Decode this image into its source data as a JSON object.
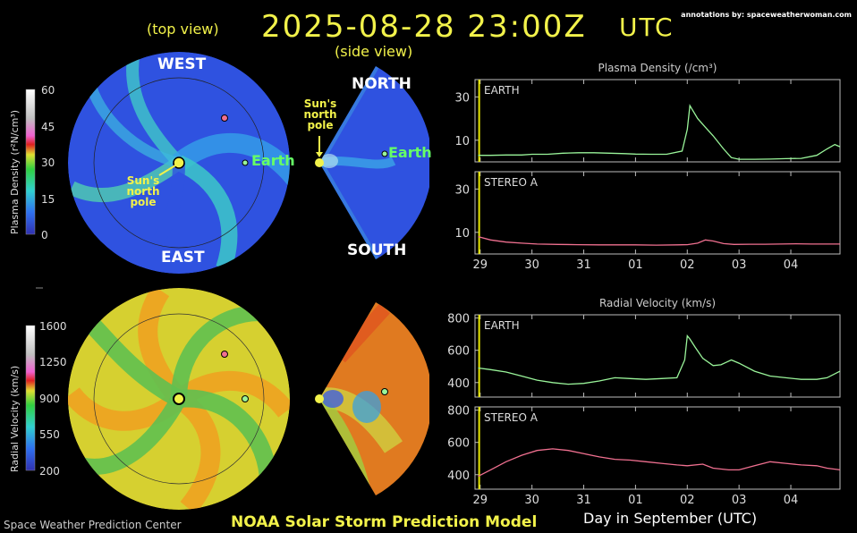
{
  "header": {
    "date": "2025-08-28 23:00Z",
    "utc": "UTC",
    "annotations": "annotations by: spaceweatherwoman.com"
  },
  "views": {
    "top": "(top view)",
    "side": "(side view)"
  },
  "directions": {
    "west": "WEST",
    "east": "EAST",
    "north": "NORTH",
    "south": "SOUTH"
  },
  "labels": {
    "earth": "Earth",
    "pole_line1": "Sun's",
    "pole_line2": "north",
    "pole_line3": "pole"
  },
  "colorbars": {
    "density": {
      "title": "Plasma Density (r²N/cm³)",
      "ticks": [
        "60",
        "45",
        "30",
        "15",
        "0"
      ]
    },
    "velocity": {
      "title": "Radial Velocity (km/s)",
      "ticks": [
        "1600",
        "1250",
        "900",
        "550",
        "200"
      ]
    }
  },
  "footer": {
    "left": "Space Weather Prediction Center",
    "middle": "NOAA Solar Storm Prediction Model",
    "right": "Day in  September (UTC)"
  },
  "colors": {
    "density_line_earth": "#9af59a",
    "density_line_stereo": "#f07090",
    "velocity_line_earth": "#9af59a",
    "velocity_line_stereo": "#f07090",
    "now_marker": "#e8e800"
  },
  "chart_data": [
    {
      "type": "line",
      "title": "Plasma Density (/cm³)",
      "panel": "EARTH",
      "x_tick_labels": [
        "29",
        "30",
        "31",
        "01",
        "02",
        "03",
        "04"
      ],
      "x": [
        28.96,
        29.2,
        29.5,
        29.8,
        30.0,
        30.3,
        30.6,
        30.9,
        31.2,
        31.5,
        31.8,
        32.0,
        32.3,
        32.6,
        32.9,
        33.0,
        33.05,
        33.1,
        33.2,
        33.35,
        33.5,
        33.7,
        33.85,
        34.0,
        34.3,
        34.6,
        34.9,
        35.2,
        35.5,
        35.7,
        35.85,
        35.95
      ],
      "y": [
        3,
        3,
        3.2,
        3.2,
        3.5,
        3.5,
        4,
        4.2,
        4.2,
        4,
        3.8,
        3.6,
        3.5,
        3.5,
        5,
        15,
        26,
        24,
        20,
        16,
        12,
        6,
        2,
        1.2,
        1.2,
        1.3,
        1.5,
        1.6,
        3,
        6,
        8,
        7
      ],
      "yticks": [
        10,
        30
      ],
      "ylim": [
        0,
        38
      ],
      "xlim": [
        28.9,
        35.95
      ]
    },
    {
      "type": "line",
      "title": "",
      "panel": "STEREO A",
      "x_tick_labels": [
        "29",
        "30",
        "31",
        "01",
        "02",
        "03",
        "04"
      ],
      "x": [
        28.96,
        29.2,
        29.5,
        29.8,
        30.1,
        30.5,
        30.9,
        31.3,
        31.7,
        32.0,
        32.4,
        32.8,
        33.0,
        33.2,
        33.35,
        33.5,
        33.7,
        33.9,
        34.2,
        34.5,
        34.8,
        35.1,
        35.4,
        35.7,
        35.95
      ],
      "y": [
        8,
        6.5,
        5.5,
        5,
        4.6,
        4.4,
        4.3,
        4.2,
        4.2,
        4.2,
        4.1,
        4.2,
        4.3,
        5,
        6.5,
        6,
        4.8,
        4.4,
        4.5,
        4.5,
        4.6,
        4.7,
        4.6,
        4.6,
        4.6
      ],
      "yticks": [
        10,
        30
      ],
      "ylim": [
        0,
        38
      ],
      "xlim": [
        28.9,
        35.95
      ]
    },
    {
      "type": "line",
      "title": "Radial Velocity (km/s)",
      "panel": "EARTH",
      "x_tick_labels": [
        "29",
        "30",
        "31",
        "01",
        "02",
        "03",
        "04"
      ],
      "x": [
        28.96,
        29.2,
        29.5,
        29.8,
        30.1,
        30.4,
        30.7,
        31.0,
        31.3,
        31.6,
        31.9,
        32.2,
        32.5,
        32.8,
        32.95,
        33.0,
        33.05,
        33.15,
        33.3,
        33.5,
        33.65,
        33.75,
        33.85,
        34.0,
        34.3,
        34.6,
        34.9,
        35.2,
        35.5,
        35.7,
        35.95
      ],
      "y": [
        490,
        480,
        465,
        440,
        415,
        400,
        390,
        395,
        410,
        430,
        425,
        420,
        425,
        430,
        540,
        690,
        670,
        620,
        550,
        505,
        510,
        525,
        540,
        520,
        470,
        440,
        430,
        420,
        420,
        430,
        470
      ],
      "yticks": [
        400,
        600,
        800
      ],
      "ylim": [
        310,
        820
      ],
      "xlim": [
        28.9,
        35.95
      ]
    },
    {
      "type": "line",
      "title": "",
      "panel": "STEREO A",
      "x_tick_labels": [
        "29",
        "30",
        "31",
        "01",
        "02",
        "03",
        "04"
      ],
      "x": [
        28.96,
        29.2,
        29.5,
        29.8,
        30.1,
        30.4,
        30.7,
        31.0,
        31.3,
        31.6,
        31.9,
        32.2,
        32.5,
        32.8,
        33.0,
        33.3,
        33.5,
        33.8,
        34.0,
        34.3,
        34.6,
        34.9,
        35.2,
        35.5,
        35.7,
        35.95
      ],
      "y": [
        390,
        430,
        480,
        520,
        550,
        560,
        550,
        530,
        510,
        495,
        490,
        480,
        470,
        460,
        455,
        465,
        440,
        430,
        430,
        455,
        480,
        470,
        460,
        455,
        440,
        430
      ],
      "yticks": [
        400,
        600,
        800
      ],
      "ylim": [
        310,
        820
      ],
      "xlim": [
        28.9,
        35.95
      ]
    }
  ]
}
